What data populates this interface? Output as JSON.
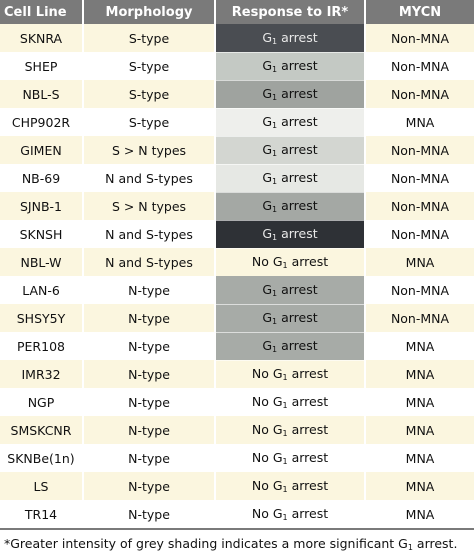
{
  "headers": {
    "cell_line": "Cell Line",
    "morphology": "Morphology",
    "response": "Response to IR*",
    "mycn": "MYCN"
  },
  "rows": [
    {
      "cell_line": "SKNRA",
      "morphology": "S-type",
      "resp_main": "G",
      "resp_sub": "1",
      "resp_rest": " arrest",
      "resp_prefix": "",
      "mycn": "Non-MNA",
      "shade": "#4a4d52"
    },
    {
      "cell_line": "SHEP",
      "morphology": "S-type",
      "resp_prefix": "",
      "resp_main": "G",
      "resp_sub": "1",
      "resp_rest": " arrest",
      "mycn": "Non-MNA",
      "shade": "#c4c9c4"
    },
    {
      "cell_line": "NBL-S",
      "morphology": "S-type",
      "resp_prefix": "",
      "resp_main": "G",
      "resp_sub": "1",
      "resp_rest": " arrest",
      "mycn": "Non-MNA",
      "shade": "#9fa39f"
    },
    {
      "cell_line": "CHP902R",
      "morphology": "S-type",
      "resp_prefix": "",
      "resp_main": "G",
      "resp_sub": "1",
      "resp_rest": " arrest",
      "mycn": "MNA",
      "shade": "#eeefec"
    },
    {
      "cell_line": "GIMEN",
      "morphology": "S > N types",
      "resp_prefix": "",
      "resp_main": "G",
      "resp_sub": "1",
      "resp_rest": " arrest",
      "mycn": "Non-MNA",
      "shade": "#d3d6d1"
    },
    {
      "cell_line": "NB-69",
      "morphology": "N and S-types",
      "resp_prefix": "",
      "resp_main": "G",
      "resp_sub": "1",
      "resp_rest": " arrest",
      "mycn": "Non-MNA",
      "shade": "#e6e8e4"
    },
    {
      "cell_line": "SJNB-1",
      "morphology": "S > N types",
      "resp_prefix": "",
      "resp_main": "G",
      "resp_sub": "1",
      "resp_rest": " arrest",
      "mycn": "Non-MNA",
      "shade": "#a4a8a4"
    },
    {
      "cell_line": "SKNSH",
      "morphology": "N and S-types",
      "resp_prefix": "",
      "resp_main": "G",
      "resp_sub": "1",
      "resp_rest": " arrest",
      "mycn": "Non-MNA",
      "shade": "#2e3136"
    },
    {
      "cell_line": "NBL-W",
      "morphology": "N and S-types",
      "resp_prefix": "No ",
      "resp_main": "G",
      "resp_sub": "1",
      "resp_rest": " arrest",
      "mycn": "MNA",
      "shade": ""
    },
    {
      "cell_line": "LAN-6",
      "morphology": "N-type",
      "resp_prefix": "",
      "resp_main": "G",
      "resp_sub": "1",
      "resp_rest": " arrest",
      "mycn": "Non-MNA",
      "shade": "#a7aba7"
    },
    {
      "cell_line": "SHSY5Y",
      "morphology": "N-type",
      "resp_prefix": "",
      "resp_main": "G",
      "resp_sub": "1",
      "resp_rest": " arrest",
      "mycn": "Non-MNA",
      "shade": "#a7aba7"
    },
    {
      "cell_line": "PER108",
      "morphology": "N-type",
      "resp_prefix": "",
      "resp_main": "G",
      "resp_sub": "1",
      "resp_rest": " arrest",
      "mycn": "MNA",
      "shade": "#a7aba7"
    },
    {
      "cell_line": "IMR32",
      "morphology": "N-type",
      "resp_prefix": "No ",
      "resp_main": "G",
      "resp_sub": "1",
      "resp_rest": " arrest",
      "mycn": "MNA",
      "shade": ""
    },
    {
      "cell_line": "NGP",
      "morphology": "N-type",
      "resp_prefix": "No ",
      "resp_main": "G",
      "resp_sub": "1",
      "resp_rest": " arrest",
      "mycn": "MNA",
      "shade": ""
    },
    {
      "cell_line": "SMSKCNR",
      "morphology": "N-type",
      "resp_prefix": "No ",
      "resp_main": "G",
      "resp_sub": "1",
      "resp_rest": " arrest",
      "mycn": "MNA",
      "shade": ""
    },
    {
      "cell_line": "SKNBe(1n)",
      "morphology": "N-type",
      "resp_prefix": "No ",
      "resp_main": "G",
      "resp_sub": "1",
      "resp_rest": " arrest",
      "mycn": "MNA",
      "shade": ""
    },
    {
      "cell_line": "LS",
      "morphology": "N-type",
      "resp_prefix": "No ",
      "resp_main": "G",
      "resp_sub": "1",
      "resp_rest": " arrest",
      "mycn": "MNA",
      "shade": ""
    },
    {
      "cell_line": "TR14",
      "morphology": "N-type",
      "resp_prefix": "No ",
      "resp_main": "G",
      "resp_sub": "1",
      "resp_rest": " arrest",
      "mycn": "MNA",
      "shade": ""
    }
  ],
  "footnote": {
    "main": "*Greater intensity of grey shading indicates a more significant G",
    "sub": "1",
    "rest": " arrest."
  },
  "colors": {
    "header_bg": "#7a7a7a",
    "stripe": "#fbf6df"
  }
}
